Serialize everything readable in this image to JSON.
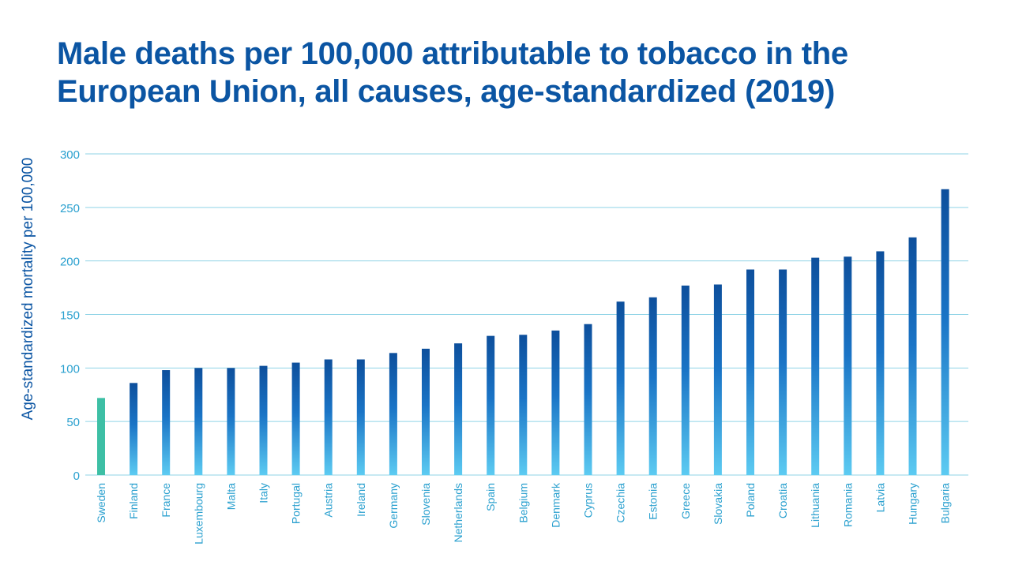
{
  "chart_data": {
    "type": "bar",
    "title": "Male deaths per 100,000 attributable to tobacco in the European Union, all causes, age-standardized (2019)",
    "xlabel": "",
    "ylabel": "Age-standardized mortality per 100,000",
    "ylim": [
      0,
      300
    ],
    "yticks": [
      0,
      50,
      100,
      150,
      200,
      250,
      300
    ],
    "grid": true,
    "categories": [
      "Sweden",
      "Finland",
      "France",
      "Luxembourg",
      "Malta",
      "Italy",
      "Portugal",
      "Austria",
      "Ireland",
      "Germany",
      "Slovenia",
      "Netherlands",
      "Spain",
      "Belgium",
      "Denmark",
      "Cyprus",
      "Czechia",
      "Estonia",
      "Greece",
      "Slovakia",
      "Poland",
      "Croatia",
      "Lithuania",
      "Romania",
      "Latvia",
      "Hungary",
      "Bulgaria"
    ],
    "values": [
      72,
      86,
      98,
      100,
      100,
      102,
      105,
      108,
      108,
      114,
      118,
      123,
      130,
      131,
      135,
      141,
      162,
      166,
      177,
      178,
      192,
      192,
      203,
      204,
      209,
      222,
      267
    ],
    "colors": {
      "highlight": "#3dbfa5",
      "bar_top": "#0d4f9c",
      "bar_mid": "#1f7fcf",
      "bar_bottom": "#5ccbf2",
      "grid": "#8fd3e6",
      "tick_text": "#2aa0cf",
      "title": "#0b55a3"
    }
  }
}
